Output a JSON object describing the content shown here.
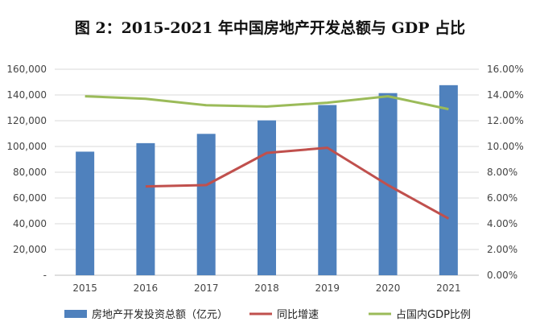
{
  "chart_data": {
    "type": "bar",
    "title": "图 2：2015-2021 年中国房地产开发总额与 GDP 占比",
    "categories": [
      "2015",
      "2016",
      "2017",
      "2018",
      "2019",
      "2020",
      "2021"
    ],
    "ylim": [
      0,
      160000
    ],
    "y_ticks": [
      "-",
      "20,000",
      "40,000",
      "60,000",
      "80,000",
      "100,000",
      "120,000",
      "140,000",
      "160,000"
    ],
    "y2lim": [
      0,
      16
    ],
    "y2_ticks": [
      "0.00%",
      "2.00%",
      "4.00%",
      "6.00%",
      "8.00%",
      "10.00%",
      "12.00%",
      "14.00%",
      "16.00%"
    ],
    "grid": true,
    "legend_position": "bottom",
    "series": [
      {
        "name": "房地产开发投资总额（亿元）",
        "type": "bar",
        "axis": "left",
        "color": "#4f81bd",
        "values": [
          95979,
          102581,
          109799,
          120264,
          132194,
          141443,
          147602
        ]
      },
      {
        "name": "同比增速",
        "type": "line",
        "axis": "right",
        "color": "#c0504d",
        "values": [
          null,
          6.9,
          7.0,
          9.5,
          9.9,
          7.0,
          4.4
        ]
      },
      {
        "name": "占国内GDP比例",
        "type": "line",
        "axis": "right",
        "color": "#9bbb59",
        "values": [
          13.9,
          13.7,
          13.2,
          13.1,
          13.4,
          13.9,
          12.9
        ]
      }
    ]
  }
}
